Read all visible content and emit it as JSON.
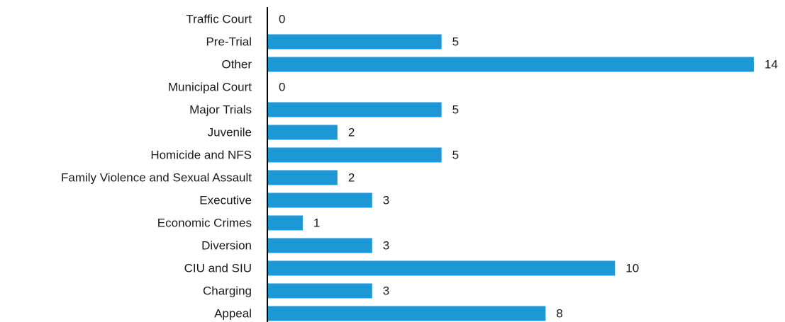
{
  "chart_data": {
    "type": "bar",
    "orientation": "horizontal",
    "color": "#1b98d5",
    "categories": [
      "Traffic Court",
      "Pre-Trial",
      "Other",
      "Municipal Court",
      "Major Trials",
      "Juvenile",
      "Homicide and NFS",
      "Family Violence and Sexual Assault",
      "Executive",
      "Economic Crimes",
      "Diversion",
      "CIU and SIU",
      "Charging",
      "Appeal"
    ],
    "values": [
      0,
      5,
      14,
      0,
      5,
      2,
      5,
      2,
      3,
      1,
      3,
      10,
      3,
      8
    ]
  }
}
